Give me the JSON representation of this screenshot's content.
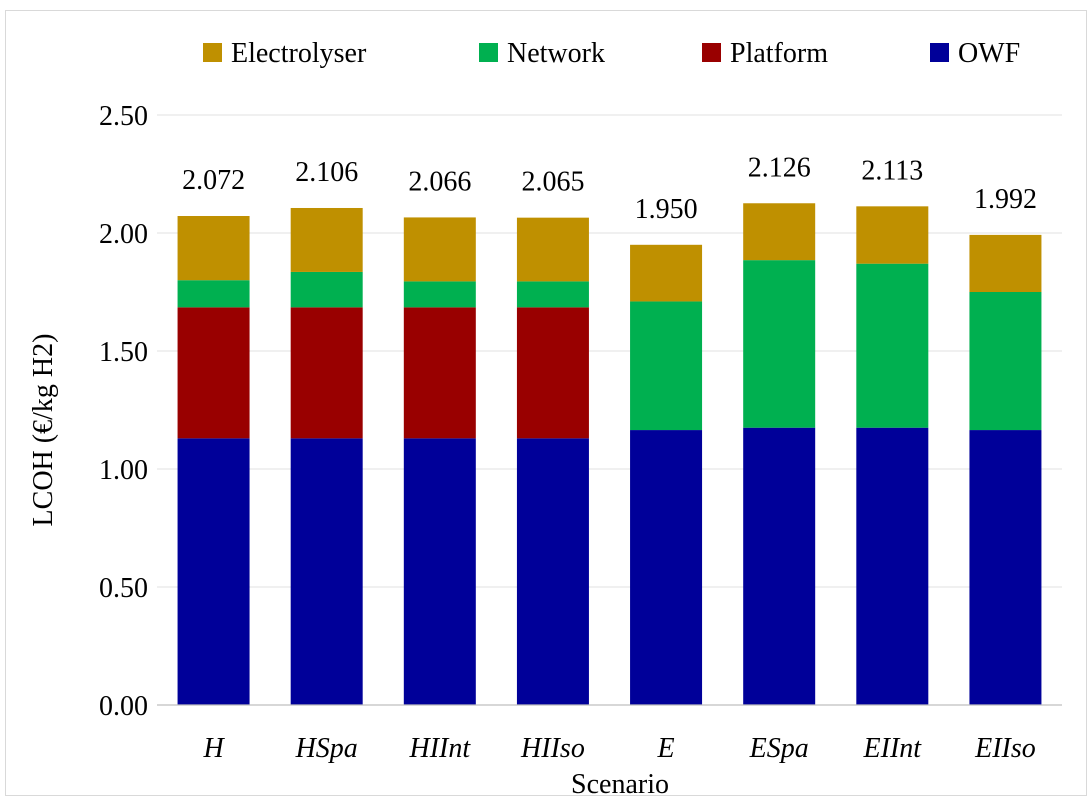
{
  "chart_data": {
    "type": "bar",
    "stacked": true,
    "title": "",
    "xlabel": "Scenario",
    "ylabel": "LCOH (€/kg H2)",
    "ylim": [
      0,
      2.5
    ],
    "yticks": [
      "0.00",
      "0.50",
      "1.00",
      "1.50",
      "2.00",
      "2.50"
    ],
    "grid": true,
    "legend_position": "top",
    "categories": [
      "H",
      "HSpa",
      "HIInt",
      "HIIso",
      "E",
      "ESpa",
      "EIInt",
      "EIIso"
    ],
    "series": [
      {
        "name": "OWF",
        "color": "#000099",
        "values": [
          1.13,
          1.13,
          1.13,
          1.13,
          1.165,
          1.175,
          1.175,
          1.165
        ]
      },
      {
        "name": "Platform",
        "color": "#990000",
        "values": [
          0.555,
          0.555,
          0.555,
          0.555,
          0.0,
          0.0,
          0.0,
          0.0
        ]
      },
      {
        "name": "Network",
        "color": "#00B050",
        "values": [
          0.115,
          0.15,
          0.11,
          0.11,
          0.545,
          0.71,
          0.695,
          0.585
        ]
      },
      {
        "name": "Electrolyser",
        "color": "#BF9000",
        "values": [
          0.272,
          0.271,
          0.271,
          0.27,
          0.24,
          0.241,
          0.243,
          0.242
        ]
      }
    ],
    "totals": [
      "2.072",
      "2.106",
      "2.066",
      "2.065",
      "1.950",
      "2.126",
      "2.113",
      "1.992"
    ],
    "legend_order": [
      "Electrolyser",
      "Network",
      "Platform",
      "OWF"
    ]
  }
}
